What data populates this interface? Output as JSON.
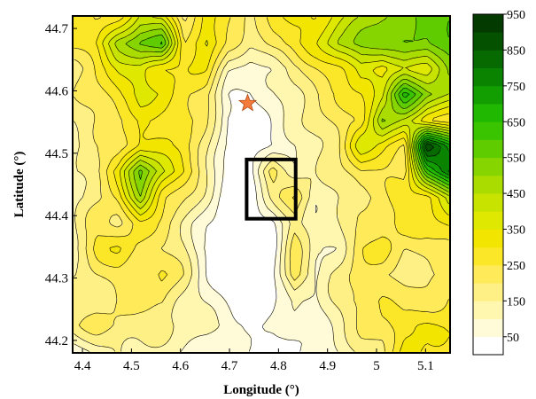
{
  "chart_data": {
    "type": "heatmap",
    "subtype": "filled-contour-map",
    "xlabel": "Longitude (°)",
    "ylabel": "Latitude (°)",
    "xlim": [
      4.38,
      5.15
    ],
    "ylim": [
      44.18,
      44.72
    ],
    "x_ticks": [
      4.4,
      4.5,
      4.6,
      4.7,
      4.8,
      4.9,
      5,
      5.1
    ],
    "x_tick_labels": [
      "4.4",
      "4.5",
      "4.6",
      "4.7",
      "4.8",
      "4.9",
      "5",
      "5.1"
    ],
    "y_ticks": [
      44.2,
      44.3,
      44.4,
      44.5,
      44.6,
      44.7
    ],
    "y_tick_labels": [
      "44.2",
      "44.3",
      "44.4",
      "44.5",
      "44.6",
      "44.7"
    ],
    "colorbar": {
      "levels": [
        0,
        50,
        100,
        150,
        200,
        250,
        300,
        350,
        400,
        450,
        500,
        550,
        600,
        650,
        700,
        750,
        800,
        850,
        900,
        950
      ],
      "tick_values": [
        50,
        150,
        250,
        350,
        450,
        550,
        650,
        750,
        850,
        950
      ],
      "tick_labels": [
        "50",
        "150",
        "250",
        "350",
        "450",
        "550",
        "650",
        "750",
        "850",
        "950"
      ],
      "colors": [
        "#ffffff",
        "#fffbd8",
        "#fff6b0",
        "#fff085",
        "#ffeb5a",
        "#fbe727",
        "#f2e600",
        "#dfe800",
        "#c8e300",
        "#aadc00",
        "#86d400",
        "#5fcc00",
        "#3ac400",
        "#20b800",
        "#129e00",
        "#0a8400",
        "#066a00",
        "#045200",
        "#033a00"
      ]
    },
    "grid": [
      [
        300,
        220,
        280,
        420,
        380,
        180,
        320,
        260,
        200,
        260,
        300,
        320,
        380,
        440,
        500,
        540,
        560,
        600
      ],
      [
        280,
        300,
        480,
        560,
        600,
        250,
        380,
        220,
        150,
        240,
        280,
        340,
        460,
        520,
        560,
        560,
        520,
        600
      ],
      [
        180,
        260,
        340,
        380,
        320,
        280,
        300,
        120,
        80,
        100,
        180,
        240,
        300,
        380,
        300,
        400,
        380,
        500
      ],
      [
        180,
        230,
        300,
        360,
        340,
        260,
        220,
        60,
        40,
        80,
        150,
        200,
        240,
        300,
        400,
        680,
        520,
        440
      ],
      [
        160,
        200,
        240,
        300,
        280,
        300,
        200,
        30,
        20,
        60,
        120,
        180,
        220,
        260,
        520,
        420,
        300,
        280
      ],
      [
        140,
        180,
        220,
        330,
        300,
        260,
        180,
        40,
        10,
        50,
        90,
        150,
        200,
        380,
        320,
        260,
        900,
        720
      ],
      [
        150,
        200,
        320,
        560,
        420,
        300,
        160,
        20,
        10,
        250,
        120,
        130,
        180,
        260,
        240,
        220,
        620,
        800
      ],
      [
        120,
        180,
        260,
        500,
        280,
        200,
        120,
        10,
        10,
        150,
        260,
        110,
        150,
        180,
        220,
        280,
        300,
        420
      ],
      [
        130,
        240,
        200,
        280,
        220,
        150,
        60,
        10,
        10,
        30,
        180,
        120,
        130,
        200,
        240,
        280,
        260,
        320
      ],
      [
        150,
        260,
        300,
        240,
        200,
        160,
        40,
        10,
        10,
        20,
        220,
        100,
        120,
        240,
        280,
        200,
        220,
        240
      ],
      [
        140,
        200,
        220,
        220,
        260,
        180,
        60,
        10,
        10,
        30,
        250,
        90,
        180,
        220,
        200,
        200,
        180,
        200
      ],
      [
        160,
        180,
        200,
        200,
        220,
        140,
        80,
        40,
        30,
        40,
        120,
        80,
        160,
        240,
        260,
        200,
        220,
        260
      ],
      [
        180,
        220,
        200,
        180,
        160,
        140,
        120,
        80,
        60,
        40,
        60,
        80,
        120,
        200,
        240,
        280,
        320,
        300
      ],
      [
        60,
        120,
        160,
        140,
        120,
        100,
        80,
        50,
        40,
        30,
        40,
        60,
        100,
        160,
        200,
        340,
        260,
        300
      ]
    ],
    "annotations": [
      {
        "type": "marker",
        "symbol": "star",
        "x": 4.737,
        "y": 44.58
      },
      {
        "type": "rectangle",
        "x0": 4.735,
        "x1": 4.835,
        "y0": 44.395,
        "y1": 44.49
      }
    ]
  }
}
